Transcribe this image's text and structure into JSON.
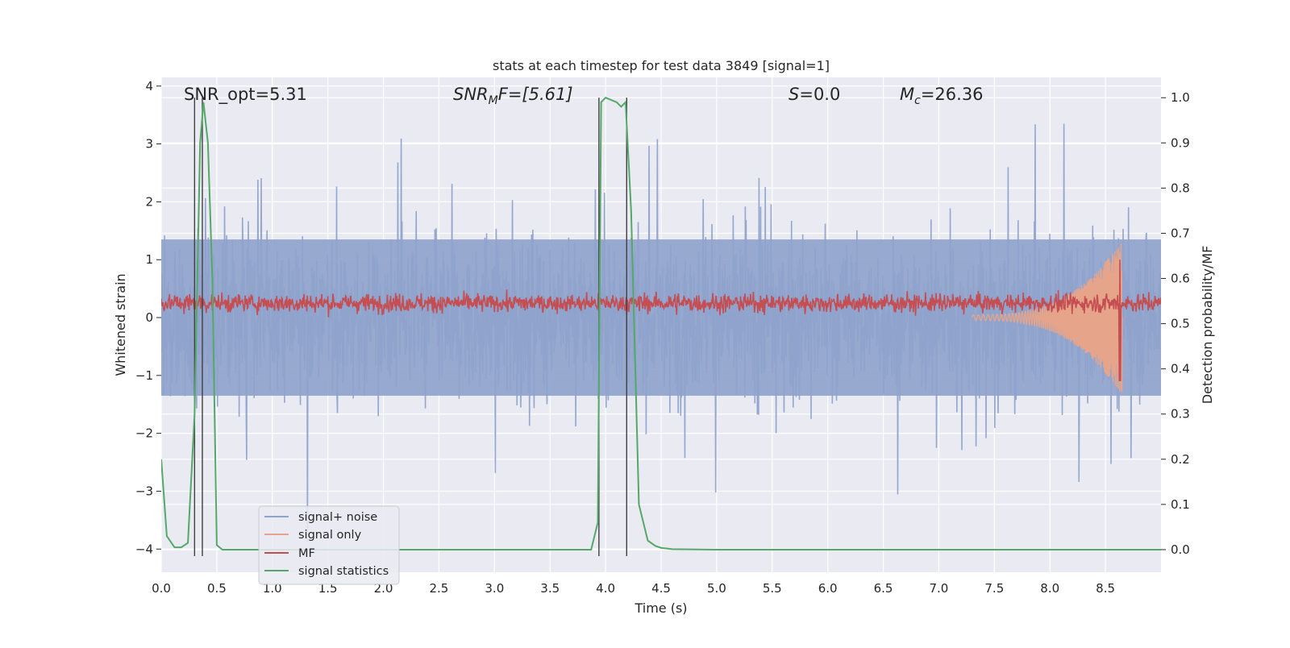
{
  "chart_data": {
    "type": "line",
    "title": "stats at each timestep for test data 3849 [signal=1]",
    "xlabel": "Time (s)",
    "ylabel_left": "Whitened strain",
    "ylabel_right": "Detection probability/MF",
    "xlim": [
      0,
      9.0
    ],
    "ylim_left": [
      -4.4,
      4.15
    ],
    "ylim_right": [
      -0.05,
      1.045
    ],
    "x_ticks": [
      "0.0",
      "0.5",
      "1.0",
      "1.5",
      "2.0",
      "2.5",
      "3.0",
      "3.5",
      "4.0",
      "4.5",
      "5.0",
      "5.5",
      "6.0",
      "6.5",
      "7.0",
      "7.5",
      "8.0",
      "8.5"
    ],
    "y_ticks_left": [
      "−4",
      "−3",
      "−2",
      "−1",
      "0",
      "1",
      "2",
      "3",
      "4"
    ],
    "y_ticks_right": [
      "0.0",
      "0.1",
      "0.2",
      "0.3",
      "0.4",
      "0.5",
      "0.6",
      "0.7",
      "0.8",
      "0.9",
      "1.0"
    ],
    "grid": true,
    "legend_position": "lower-left",
    "annotations": {
      "snr_opt": "SNR_opt=5.31",
      "snr_mf_base": "SNR",
      "snr_mf_sub": "M",
      "snr_mf_rest": "F=[5.61]",
      "s_base": "S",
      "s_rest": "=0.0",
      "mc_base": "M",
      "mc_sub": "c",
      "mc_rest": "=26.36"
    },
    "vertical_lines_x": [
      0.3,
      0.37,
      3.94,
      4.19
    ],
    "series": [
      {
        "name": "signal+ noise",
        "color": "#8fa3cc",
        "axis": "left",
        "description_points": "noise band, |strain| ~ 1.5 typical, peaks to ~3.3 / -4.0",
        "band_typical": 1.5,
        "band_peak": 3.3
      },
      {
        "name": "signal only",
        "color": "#e6a48a",
        "axis": "left",
        "chirp_start": 7.3,
        "chirp_end": 8.65,
        "chirp_peak_amplitude": 1.3
      },
      {
        "name": "MF",
        "color": "#c44e52",
        "axis": "left",
        "baseline": 0.25,
        "spread": 0.2,
        "spike_x": 8.63,
        "spike_max": 1.0,
        "spike_min": -1.1
      },
      {
        "name": "signal statistics",
        "color": "#55a868",
        "axis": "right",
        "x": [
          0.0,
          0.05,
          0.12,
          0.18,
          0.24,
          0.3,
          0.35,
          0.38,
          0.42,
          0.46,
          0.5,
          0.55,
          1.0,
          2.0,
          3.0,
          3.5,
          3.87,
          3.93,
          3.96,
          4.0,
          4.1,
          4.14,
          4.18,
          4.23,
          4.3,
          4.38,
          4.45,
          4.5,
          4.6,
          5.0,
          6.0,
          7.0,
          7.5,
          8.0,
          8.5,
          9.0
        ],
        "values": [
          0.2,
          0.03,
          0.005,
          0.005,
          0.015,
          0.3,
          0.9,
          0.99,
          0.9,
          0.6,
          0.01,
          0.0,
          0.0,
          0.0,
          0.0,
          0.0,
          0.0,
          0.06,
          0.99,
          1.0,
          0.99,
          0.98,
          0.99,
          0.75,
          0.1,
          0.02,
          0.008,
          0.004,
          0.001,
          0.0,
          0.0,
          0.0,
          0.0,
          0.0,
          0.0,
          0.0
        ]
      }
    ]
  }
}
